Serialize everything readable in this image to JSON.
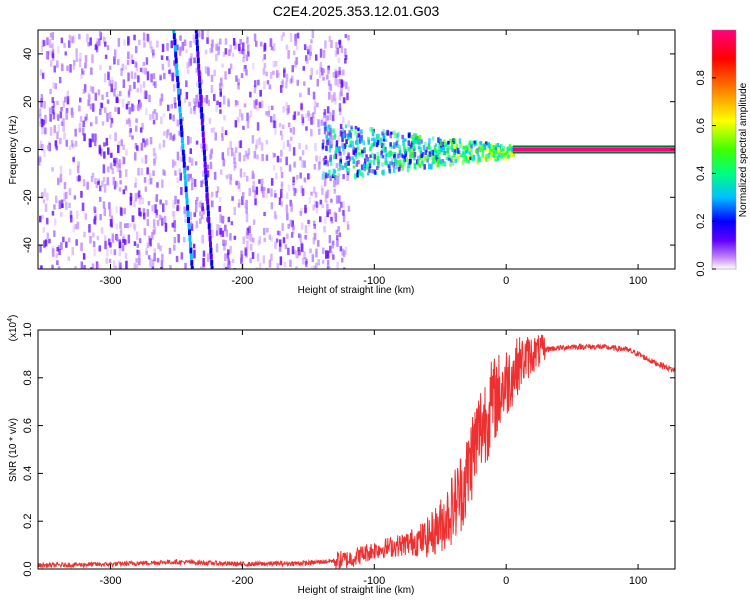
{
  "title": "C2E4.2025.353.12.01.G03",
  "chart_data": [
    {
      "type": "heatmap",
      "xlabel": "Height of straight line (km)",
      "ylabel": "Frequency (Hz)",
      "xlim": [
        -355,
        128
      ],
      "ylim": [
        -50,
        50
      ],
      "x_ticks": [
        -300,
        -200,
        -100,
        0,
        100
      ],
      "x_tick_labels": [
        "-300",
        "-200",
        "-100",
        "0",
        "100"
      ],
      "y_ticks": [
        -40,
        -20,
        0,
        20,
        40
      ],
      "y_tick_labels": [
        "-40",
        "-20",
        "0",
        "20",
        "40"
      ],
      "colorbar": {
        "label": "Normalized spectral amplitude",
        "range": [
          0,
          1
        ],
        "ticks": [
          0.0,
          0.2,
          0.4,
          0.6,
          0.8
        ],
        "tick_labels": [
          "0.0",
          "0.2",
          "0.4",
          "0.6",
          "0.8"
        ],
        "colors": [
          "#ffffff",
          "#c080ff",
          "#6000ff",
          "#0000ff",
          "#00c0ff",
          "#00ff80",
          "#40ff00",
          "#ffff00",
          "#ff8000",
          "#ff0000",
          "#ff0080"
        ]
      },
      "features": [
        {
          "name": "noise",
          "x_range": [
            -355,
            -120
          ],
          "freq_range": [
            -50,
            50
          ],
          "amplitude": 0.2
        },
        {
          "name": "drift-line-1",
          "x_start": -252,
          "freq_start": 50,
          "x_end": -238,
          "freq_end": -50,
          "amplitude": 0.3
        },
        {
          "name": "drift-line-2",
          "x_start": -235,
          "freq_start": 50,
          "x_end": -223,
          "freq_end": -50,
          "amplitude": 0.2
        },
        {
          "name": "transition-band",
          "x_range": [
            -140,
            5
          ],
          "freq_center": 0,
          "freq_halfwidth_start": 12,
          "freq_halfwidth_end": 2,
          "amplitude": 0.4
        },
        {
          "name": "carrier",
          "x_range": [
            5,
            128
          ],
          "freq": 0,
          "amplitude": 0.95
        }
      ]
    },
    {
      "type": "line",
      "xlabel": "Height of straight line (km)",
      "ylabel": "SNR (10 * v/v)",
      "y_scale_label": "(x10",
      "y_scale_exp": "4",
      "y_scale_close": ")",
      "xlim": [
        -355,
        128
      ],
      "ylim": [
        0,
        1.0
      ],
      "x_ticks": [
        -300,
        -200,
        -100,
        0,
        100
      ],
      "x_tick_labels": [
        "-300",
        "-200",
        "-100",
        "0",
        "100"
      ],
      "y_ticks": [
        0.0,
        0.2,
        0.4,
        0.6,
        0.8,
        1.0
      ],
      "y_tick_labels": [
        "0.0",
        "0.2",
        "0.4",
        "0.6",
        "0.8",
        "1.0"
      ],
      "color": "#ee3030",
      "x": [
        -355,
        -300,
        -250,
        -200,
        -150,
        -120,
        -100,
        -80,
        -60,
        -50,
        -40,
        -30,
        -25,
        -20,
        -10,
        0,
        10,
        20,
        30,
        50,
        70,
        90,
        100,
        110,
        128
      ],
      "y": [
        0.015,
        0.02,
        0.03,
        0.02,
        0.025,
        0.04,
        0.08,
        0.1,
        0.13,
        0.18,
        0.26,
        0.38,
        0.5,
        0.58,
        0.7,
        0.78,
        0.86,
        0.9,
        0.92,
        0.93,
        0.93,
        0.92,
        0.9,
        0.87,
        0.83
      ]
    }
  ]
}
